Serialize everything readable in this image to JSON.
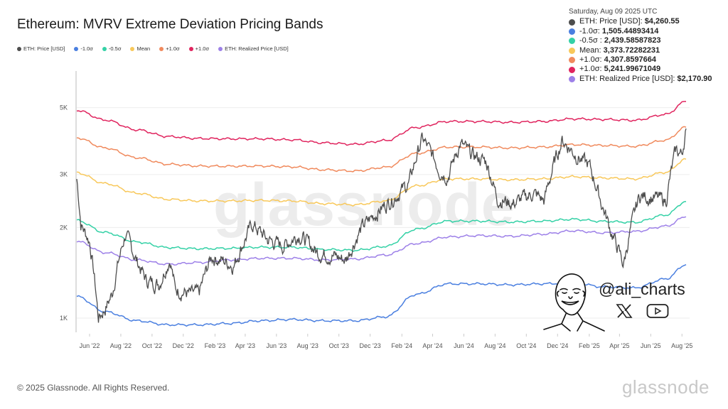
{
  "title": "Ethereum: MVRV Extreme Deviation Pricing Bands",
  "legend": [
    {
      "label": "ETH: Price [USD]",
      "color": "#4d4d4d"
    },
    {
      "label": "-1.0σ",
      "color": "#4a7fe0"
    },
    {
      "label": "-0.5σ",
      "color": "#34d1a6"
    },
    {
      "label": "Mean",
      "color": "#f8c85a"
    },
    {
      "label": "+1.0σ",
      "color": "#f08a5d"
    },
    {
      "label": "+1.0σ",
      "color": "#e0245e"
    },
    {
      "label": "ETH: Realized Price [USD]",
      "color": "#9d80e8"
    }
  ],
  "tooltip": {
    "date": "Saturday, Aug 09 2025 UTC",
    "rows": [
      {
        "label": "ETH: Price [USD]: ",
        "value": "$4,260.55",
        "color": "#4d4d4d"
      },
      {
        "label": "-1.0σ: ",
        "value": "1,505.44893414",
        "color": "#4a7fe0"
      },
      {
        "label": "-0.5σ : ",
        "value": "2,439.58587823",
        "color": "#34d1a6"
      },
      {
        "label": "Mean: ",
        "value": "3,373.72282231",
        "color": "#f8c85a"
      },
      {
        "label": "+1.0σ: ",
        "value": "4,307.8597664",
        "color": "#f08a5d"
      },
      {
        "label": "+1.0σ: ",
        "value": "5,241.99671049",
        "color": "#e0245e"
      },
      {
        "label": "ETH: Realized Price [USD]: ",
        "value": "$2,170.90",
        "color": "#9d80e8"
      }
    ]
  },
  "watermark": "glassnode",
  "author": {
    "handle": "@ali_charts",
    "icons": [
      "x-logo-icon",
      "youtube-icon"
    ]
  },
  "footer": {
    "copyright": "© 2025 Glassnode. All Rights Reserved.",
    "logo": "glassnode"
  },
  "chart_data": {
    "type": "line",
    "title": "Ethereum: MVRV Extreme Deviation Pricing Bands",
    "yscale": "log",
    "ylim": [
      900,
      5600
    ],
    "yticks": [
      {
        "v": 1000,
        "label": "1K"
      },
      {
        "v": 2000,
        "label": "2K"
      },
      {
        "v": 3000,
        "label": "3K"
      },
      {
        "v": 5000,
        "label": "5K"
      }
    ],
    "xlim": [
      "2022-05-07",
      "2025-08-09"
    ],
    "xticks": [
      {
        "d": "2022-06-01",
        "label": "Jun '22"
      },
      {
        "d": "2022-08-01",
        "label": "Aug '22"
      },
      {
        "d": "2022-10-01",
        "label": "Oct '22"
      },
      {
        "d": "2022-12-01",
        "label": "Dec '22"
      },
      {
        "d": "2023-02-01",
        "label": "Feb '23"
      },
      {
        "d": "2023-04-01",
        "label": "Apr '23"
      },
      {
        "d": "2023-06-01",
        "label": "Jun '23"
      },
      {
        "d": "2023-08-01",
        "label": "Aug '23"
      },
      {
        "d": "2023-10-01",
        "label": "Oct '23"
      },
      {
        "d": "2023-12-01",
        "label": "Dec '23"
      },
      {
        "d": "2024-02-01",
        "label": "Feb '24"
      },
      {
        "d": "2024-04-01",
        "label": "Apr '24"
      },
      {
        "d": "2024-06-01",
        "label": "Jun '24"
      },
      {
        "d": "2024-08-01",
        "label": "Aug '24"
      },
      {
        "d": "2024-10-01",
        "label": "Oct '24"
      },
      {
        "d": "2024-12-01",
        "label": "Dec '24"
      },
      {
        "d": "2025-02-01",
        "label": "Feb '25"
      },
      {
        "d": "2025-04-01",
        "label": "Apr '25"
      },
      {
        "d": "2025-06-01",
        "label": "Jun '25"
      },
      {
        "d": "2025-08-01",
        "label": "Aug '25"
      }
    ],
    "grid": true,
    "legend_position": "top-left",
    "band_dates": [
      "2022-05-07",
      "2022-07-01",
      "2022-09-01",
      "2022-11-01",
      "2023-01-01",
      "2023-03-01",
      "2023-05-01",
      "2023-07-01",
      "2023-09-01",
      "2023-11-01",
      "2024-01-01",
      "2024-03-01",
      "2024-05-01",
      "2024-07-01",
      "2024-09-01",
      "2024-11-01",
      "2025-01-01",
      "2025-03-01",
      "2025-05-01",
      "2025-07-01",
      "2025-08-09"
    ],
    "series": [
      {
        "name": "-1.0σ",
        "color": "#4a7fe0",
        "values": [
          1180,
          1050,
          980,
          950,
          950,
          960,
          980,
          990,
          980,
          980,
          1010,
          1200,
          1300,
          1300,
          1290,
          1300,
          1310,
          1270,
          1260,
          1350,
          1505.45
        ]
      },
      {
        "name": "-0.5σ",
        "color": "#34d1a6",
        "values": [
          2110,
          1925,
          1790,
          1715,
          1700,
          1705,
          1720,
          1720,
          1690,
          1680,
          1730,
          1975,
          2100,
          2100,
          2085,
          2100,
          2130,
          2095,
          2080,
          2200,
          2439.59
        ]
      },
      {
        "name": "Mean",
        "color": "#f8c85a",
        "values": [
          3040,
          2800,
          2600,
          2480,
          2450,
          2450,
          2460,
          2450,
          2400,
          2380,
          2450,
          2750,
          2900,
          2900,
          2880,
          2900,
          2950,
          2920,
          2900,
          3050,
          3373.72
        ]
      },
      {
        "name": "+1.0σ",
        "color": "#f08a5d",
        "values": [
          3970,
          3675,
          3410,
          3245,
          3200,
          3195,
          3200,
          3180,
          3110,
          3080,
          3170,
          3525,
          3700,
          3700,
          3675,
          3700,
          3770,
          3745,
          3720,
          3900,
          4307.86
        ]
      },
      {
        "name": "+1.0σ",
        "color": "#e0245e",
        "values": [
          4900,
          4550,
          4220,
          4010,
          3950,
          3940,
          3940,
          3910,
          3820,
          3780,
          3890,
          4300,
          4500,
          4500,
          4470,
          4500,
          4590,
          4570,
          4540,
          4750,
          5242.0
        ]
      },
      {
        "name": "ETH: Realized Price [USD]",
        "color": "#9d80e8",
        "values": [
          1800,
          1650,
          1560,
          1510,
          1530,
          1560,
          1580,
          1580,
          1560,
          1570,
          1620,
          1770,
          1860,
          1880,
          1870,
          1900,
          1950,
          1920,
          1940,
          2020,
          2170.9
        ]
      }
    ],
    "price": {
      "name": "ETH: Price [USD]",
      "color": "#4d4d4d",
      "dates": [
        "2022-05-07",
        "2022-05-15",
        "2022-06-01",
        "2022-06-18",
        "2022-07-01",
        "2022-07-15",
        "2022-08-10",
        "2022-09-01",
        "2022-09-20",
        "2022-10-15",
        "2022-11-05",
        "2022-11-15",
        "2022-12-15",
        "2023-01-01",
        "2023-01-25",
        "2023-03-10",
        "2023-04-15",
        "2023-05-15",
        "2023-06-15",
        "2023-07-15",
        "2023-08-20",
        "2023-09-15",
        "2023-10-15",
        "2023-11-15",
        "2023-12-15",
        "2024-01-15",
        "2024-02-15",
        "2024-03-12",
        "2024-04-15",
        "2024-05-01",
        "2024-05-25",
        "2024-06-15",
        "2024-07-15",
        "2024-08-05",
        "2024-09-05",
        "2024-10-15",
        "2024-11-05",
        "2024-12-10",
        "2025-01-05",
        "2025-02-01",
        "2025-02-25",
        "2025-03-15",
        "2025-04-09",
        "2025-05-10",
        "2025-06-15",
        "2025-07-01",
        "2025-07-20",
        "2025-08-01",
        "2025-08-09"
      ],
      "values": [
        2900,
        2050,
        1800,
        1000,
        1070,
        1200,
        1900,
        1550,
        1330,
        1300,
        1580,
        1250,
        1200,
        1210,
        1600,
        1500,
        2050,
        1820,
        1740,
        1900,
        1650,
        1620,
        1560,
        2000,
        2250,
        2500,
        2800,
        3950,
        3100,
        2950,
        3800,
        3500,
        3300,
        2500,
        2400,
        2600,
        2450,
        3900,
        3500,
        3200,
        2400,
        1950,
        1500,
        2550,
        2500,
        2450,
        3600,
        3500,
        4260.55
      ]
    }
  }
}
